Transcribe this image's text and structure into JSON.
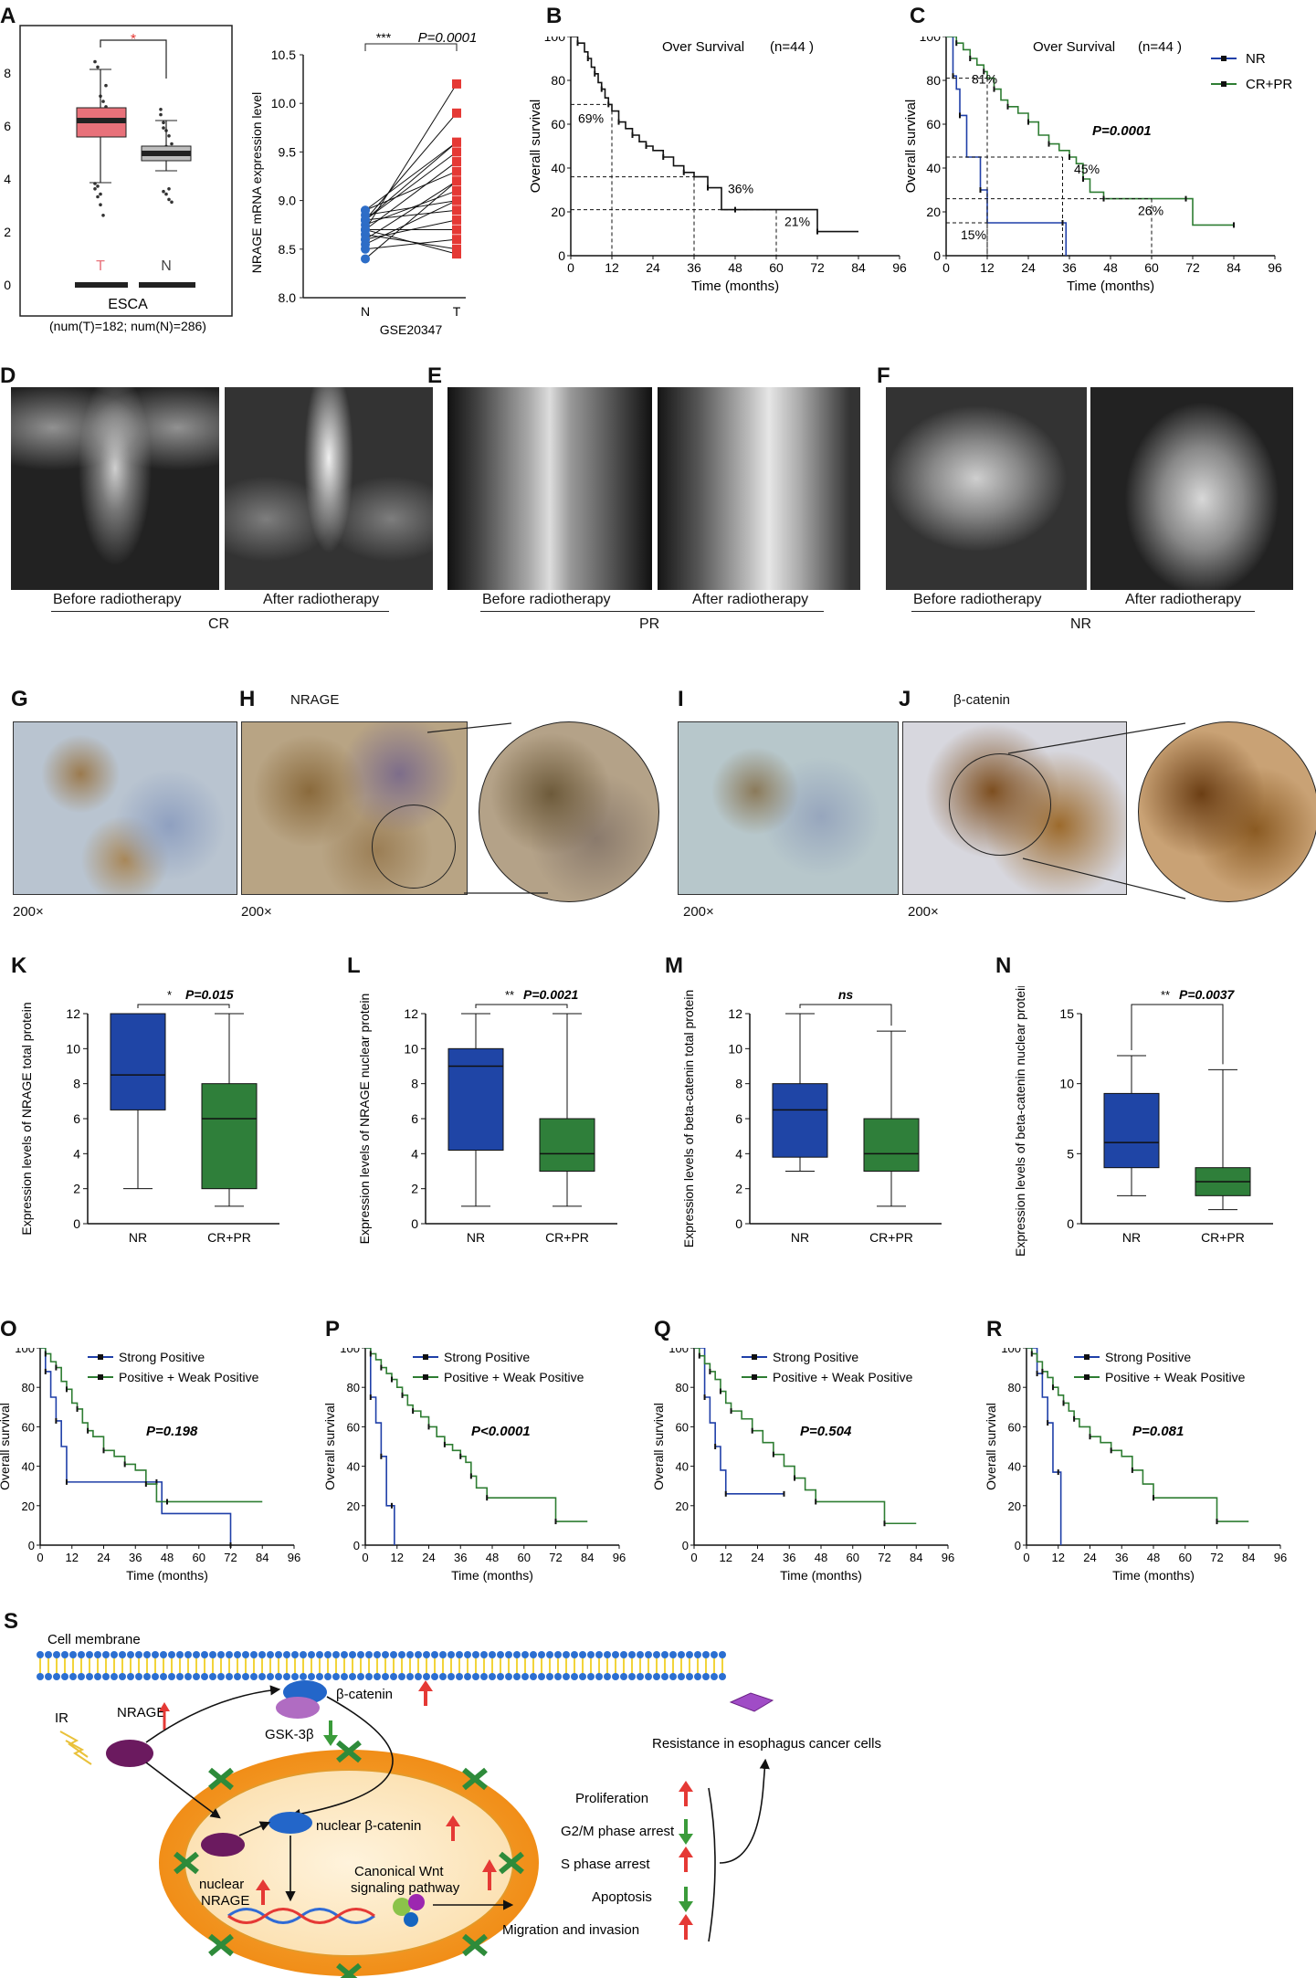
{
  "letters": [
    "A",
    "B",
    "C",
    "D",
    "E",
    "F",
    "G",
    "H",
    "I",
    "J",
    "K",
    "L",
    "M",
    "N",
    "O",
    "P",
    "Q",
    "R",
    "S"
  ],
  "panelA": {
    "left": {
      "dataset": "ESCA",
      "counts": "(num(T)=182; num(N)=286)",
      "group_t": "T",
      "group_n": "N",
      "sig": "*",
      "yticks": [
        "0",
        "2",
        "4",
        "6",
        "8"
      ]
    },
    "right": {
      "ylabel": "NRAGE mRNA expression level",
      "xlabel": "GSE20347",
      "sig": "***",
      "p": "P=0.0001",
      "xcats": [
        "N",
        "T"
      ],
      "yticks": [
        "8.0",
        "8.5",
        "9.0",
        "9.5",
        "10.0",
        "10.5"
      ]
    }
  },
  "km": {
    "time_label": "Time (months)",
    "os_label": "Overall survival",
    "xticks": [
      "0",
      "12",
      "24",
      "36",
      "48",
      "60",
      "72",
      "84",
      "96"
    ],
    "yticks": [
      "0",
      "20",
      "40",
      "60",
      "80",
      "100"
    ],
    "B": {
      "title": "Over Survival",
      "n": "(n=44 )",
      "pcts": [
        "69%",
        "36%",
        "21%"
      ]
    },
    "C": {
      "title": "Over Survival",
      "n": "(n=44 )",
      "p": "P=0.0001",
      "legend": [
        "NR",
        "CR+PR"
      ],
      "pcts": [
        "81%",
        "45%",
        "26%",
        "15%"
      ]
    },
    "O": {
      "p": "P=0.198"
    },
    "P": {
      "p": "P<0.0001"
    },
    "Q": {
      "p": "P=0.504"
    },
    "R": {
      "p": "P=0.081"
    },
    "legend_sp": [
      "Strong Positive",
      "Positive + Weak Positive"
    ]
  },
  "xray": {
    "before": "Before radiotherapy",
    "after": "After radiotherapy",
    "before_pr": "Before radiotherapy",
    "after_pr": "After  radiotherapy",
    "before_nr": "Before radiotherapy",
    "after_nr": "After  radiotherapy",
    "groups": [
      "CR",
      "PR",
      "NR"
    ]
  },
  "ihc": {
    "H_title": "NRAGE",
    "J_title": "β-catenin",
    "mag": "200×"
  },
  "box": {
    "K": {
      "ylabel": "Expression levels of  NRAGE total protein",
      "sig": "*",
      "p": "P=0.015",
      "cats": [
        "NR",
        "CR+PR"
      ],
      "yticks": [
        "0",
        "2",
        "4",
        "6",
        "8",
        "10",
        "12"
      ]
    },
    "L": {
      "ylabel": "Expression levels of NRAGE nuclear protein",
      "sig": "**",
      "p": "P=0.0021",
      "cats": [
        "NR",
        "CR+PR"
      ],
      "yticks": [
        "0",
        "2",
        "4",
        "6",
        "8",
        "10",
        "12"
      ]
    },
    "M": {
      "ylabel": "Expression levels of  beta-catenin total protein",
      "sig": "ns",
      "cats": [
        "NR",
        "CR+PR"
      ],
      "yticks": [
        "0",
        "2",
        "4",
        "6",
        "8",
        "10",
        "12"
      ]
    },
    "N": {
      "ylabel": "Expression levels of  beta-catenin nuclear protein",
      "sig": "**",
      "p": "P=0.0037",
      "cats": [
        "NR",
        "CR+PR"
      ],
      "yticks": [
        "0",
        "5",
        "10",
        "15"
      ]
    }
  },
  "diagram": {
    "membrane": "Cell membrane",
    "ir": "IR",
    "nrage": "NRAGE",
    "bcat": "β-catenin",
    "gsk": "GSK-3β",
    "nuc_bcat": "nuclear β-catenin",
    "nuc_nrage_1": "nuclear",
    "nuc_nrage_2": "NRAGE",
    "wnt_1": "Canonical Wnt",
    "wnt_2": "signaling pathway",
    "resistance": "Resistance in esophagus cancer cells",
    "outcomes": [
      "Proliferation",
      "G2/M phase arrest",
      "S phase arrest",
      "Apoptosis",
      "Migration and invasion"
    ]
  },
  "colors": {
    "nr": "#1f3fa8",
    "crpr": "#2e7d32",
    "box_blue": "#1f45a6",
    "box_green": "#2f7f3a",
    "red": "#e53935",
    "pink": "#e8717a"
  },
  "chart_data": [
    {
      "panel": "A-left",
      "type": "box",
      "categories": [
        "T",
        "N"
      ],
      "ylim": [
        0,
        8
      ],
      "series": [
        {
          "name": "T",
          "median": 6.2,
          "q1": 5.8,
          "q3": 6.6,
          "min": 4.2,
          "max": 8.1
        },
        {
          "name": "N",
          "median": 4.6,
          "q1": 4.4,
          "q3": 4.9,
          "min": 3.8,
          "max": 6.8
        }
      ]
    },
    {
      "panel": "A-right",
      "type": "scatter",
      "categories": [
        "N",
        "T"
      ],
      "ylim": [
        8.0,
        10.5
      ],
      "pairs": [
        [
          8.4,
          9.2
        ],
        [
          8.5,
          8.6
        ],
        [
          8.6,
          8.8
        ],
        [
          8.7,
          10.2
        ],
        [
          8.7,
          9.4
        ],
        [
          8.8,
          9.9
        ],
        [
          8.8,
          8.9
        ],
        [
          8.75,
          9.1
        ],
        [
          8.65,
          8.5
        ],
        [
          8.9,
          9.6
        ],
        [
          8.8,
          9.5
        ],
        [
          8.85,
          9.0
        ],
        [
          8.6,
          9.2
        ],
        [
          8.7,
          8.7
        ],
        [
          8.8,
          9.6
        ],
        [
          8.55,
          9.0
        ],
        [
          8.9,
          9.3
        ],
        [
          8.7,
          8.45
        ]
      ]
    },
    {
      "panel": "B",
      "type": "line",
      "title": "Over Survival",
      "xlabel": "Time (months)",
      "ylabel": "Overall survival",
      "xlim": [
        0,
        96
      ],
      "ylim": [
        0,
        100
      ],
      "series": [
        {
          "x": [
            0,
            2,
            4,
            5,
            6,
            7,
            8,
            9,
            10,
            11,
            12,
            14,
            16,
            18,
            20,
            22,
            24,
            27,
            30,
            33,
            36,
            40,
            44,
            48,
            60,
            72,
            84
          ],
          "y": [
            100,
            97,
            93,
            90,
            86,
            83,
            79,
            76,
            72,
            69,
            66,
            61,
            58,
            55,
            52,
            50,
            48,
            45,
            41,
            38,
            36,
            31,
            21,
            21,
            21,
            11,
            11
          ]
        }
      ]
    },
    {
      "panel": "C",
      "type": "line",
      "title": "Over Survival",
      "p": "P=0.0001",
      "xlabel": "Time (months)",
      "ylabel": "Overall survival",
      "xlim": [
        0,
        96
      ],
      "ylim": [
        0,
        100
      ],
      "series": [
        {
          "name": "NR",
          "x": [
            0,
            2,
            3,
            4,
            6,
            10,
            12,
            34,
            35
          ],
          "y": [
            100,
            82,
            76,
            64,
            45,
            30,
            15,
            15,
            0
          ]
        },
        {
          "name": "CR+PR",
          "x": [
            0,
            3,
            5,
            7,
            9,
            11,
            12,
            14,
            16,
            18,
            21,
            24,
            27,
            30,
            33,
            36,
            38,
            40,
            42,
            46,
            60,
            70,
            72,
            84
          ],
          "y": [
            100,
            97,
            94,
            90,
            87,
            84,
            81,
            76,
            71,
            68,
            65,
            61,
            55,
            51,
            48,
            45,
            42,
            35,
            29,
            26,
            26,
            26,
            14,
            14
          ]
        }
      ]
    },
    {
      "panel": "K",
      "type": "box",
      "categories": [
        "NR",
        "CR+PR"
      ],
      "ylim": [
        0,
        12
      ],
      "p": "P=0.015",
      "series": [
        {
          "name": "NR",
          "median": 8.5,
          "q1": 6.5,
          "q3": 12,
          "min": 2,
          "max": 12
        },
        {
          "name": "CR+PR",
          "median": 6,
          "q1": 2,
          "q3": 8,
          "min": 1,
          "max": 12
        }
      ]
    },
    {
      "panel": "L",
      "type": "box",
      "categories": [
        "NR",
        "CR+PR"
      ],
      "ylim": [
        0,
        12
      ],
      "p": "P=0.0021",
      "series": [
        {
          "name": "NR",
          "median": 9,
          "q1": 4.2,
          "q3": 10,
          "min": 1,
          "max": 12
        },
        {
          "name": "CR+PR",
          "median": 4,
          "q1": 3,
          "q3": 6,
          "min": 1,
          "max": 12
        }
      ]
    },
    {
      "panel": "M",
      "type": "box",
      "categories": [
        "NR",
        "CR+PR"
      ],
      "ylim": [
        0,
        12
      ],
      "series": [
        {
          "name": "NR",
          "median": 6.5,
          "q1": 3.8,
          "q3": 8,
          "min": 3,
          "max": 12
        },
        {
          "name": "CR+PR",
          "median": 4,
          "q1": 3,
          "q3": 6,
          "min": 1,
          "max": 11
        }
      ]
    },
    {
      "panel": "N",
      "type": "box",
      "categories": [
        "NR",
        "CR+PR"
      ],
      "ylim": [
        0,
        15
      ],
      "p": "P=0.0037",
      "series": [
        {
          "name": "NR",
          "median": 5.8,
          "q1": 4,
          "q3": 9.3,
          "min": 2,
          "max": 12
        },
        {
          "name": "CR+PR",
          "median": 3,
          "q1": 2,
          "q3": 4,
          "min": 1,
          "max": 11
        }
      ]
    },
    {
      "panel": "O",
      "type": "line",
      "p": "P=0.198",
      "xlim": [
        0,
        96
      ],
      "ylim": [
        0,
        100
      ],
      "series": [
        {
          "name": "Strong Positive",
          "x": [
            0,
            2,
            4,
            6,
            8,
            10,
            12,
            44,
            46,
            72
          ],
          "y": [
            100,
            88,
            75,
            63,
            50,
            32,
            32,
            32,
            16,
            0
          ]
        },
        {
          "name": "Positive + Weak Positive",
          "x": [
            0,
            2,
            4,
            6,
            8,
            10,
            12,
            14,
            16,
            18,
            20,
            24,
            28,
            32,
            36,
            40,
            44,
            48,
            84
          ],
          "y": [
            100,
            97,
            93,
            90,
            83,
            79,
            72,
            69,
            62,
            58,
            55,
            48,
            45,
            41,
            38,
            31,
            22,
            22,
            22
          ]
        }
      ]
    },
    {
      "panel": "P",
      "type": "line",
      "p": "P<0.0001",
      "xlim": [
        0,
        96
      ],
      "ylim": [
        0,
        100
      ],
      "series": [
        {
          "name": "Strong Positive",
          "x": [
            0,
            2,
            4,
            6,
            8,
            10,
            11
          ],
          "y": [
            100,
            75,
            62,
            45,
            20,
            20,
            0
          ]
        },
        {
          "name": "Positive + Weak Positive",
          "x": [
            0,
            2,
            4,
            6,
            8,
            10,
            12,
            14,
            16,
            18,
            21,
            24,
            27,
            30,
            33,
            36,
            38,
            40,
            42,
            46,
            70,
            72,
            84
          ],
          "y": [
            100,
            97,
            94,
            90,
            87,
            84,
            80,
            76,
            71,
            68,
            65,
            60,
            55,
            51,
            48,
            45,
            42,
            35,
            29,
            24,
            24,
            12,
            12
          ]
        }
      ]
    },
    {
      "panel": "Q",
      "type": "line",
      "p": "P=0.504",
      "xlim": [
        0,
        96
      ],
      "ylim": [
        0,
        100
      ],
      "series": [
        {
          "name": "Strong Positive",
          "x": [
            0,
            4,
            6,
            8,
            10,
            12,
            14,
            34
          ],
          "y": [
            100,
            75,
            62,
            50,
            38,
            26,
            26,
            26
          ]
        },
        {
          "name": "Positive + Weak Positive",
          "x": [
            0,
            2,
            4,
            6,
            8,
            10,
            12,
            14,
            18,
            22,
            26,
            30,
            34,
            38,
            42,
            46,
            70,
            72,
            84
          ],
          "y": [
            100,
            96,
            92,
            88,
            84,
            78,
            72,
            68,
            64,
            58,
            52,
            46,
            40,
            34,
            28,
            22,
            22,
            11,
            11
          ]
        }
      ]
    },
    {
      "panel": "R",
      "type": "line",
      "p": "P=0.081",
      "xlim": [
        0,
        96
      ],
      "ylim": [
        0,
        100
      ],
      "series": [
        {
          "name": "Strong Positive",
          "x": [
            0,
            4,
            6,
            8,
            10,
            12,
            13
          ],
          "y": [
            100,
            87,
            75,
            62,
            37,
            37,
            0
          ]
        },
        {
          "name": "Positive + Weak Positive",
          "x": [
            0,
            2,
            4,
            6,
            8,
            10,
            12,
            14,
            16,
            18,
            20,
            24,
            28,
            32,
            36,
            40,
            44,
            48,
            70,
            72,
            84
          ],
          "y": [
            100,
            97,
            93,
            88,
            85,
            80,
            76,
            72,
            68,
            64,
            60,
            55,
            52,
            48,
            45,
            38,
            31,
            24,
            24,
            12,
            12
          ]
        }
      ]
    }
  ]
}
